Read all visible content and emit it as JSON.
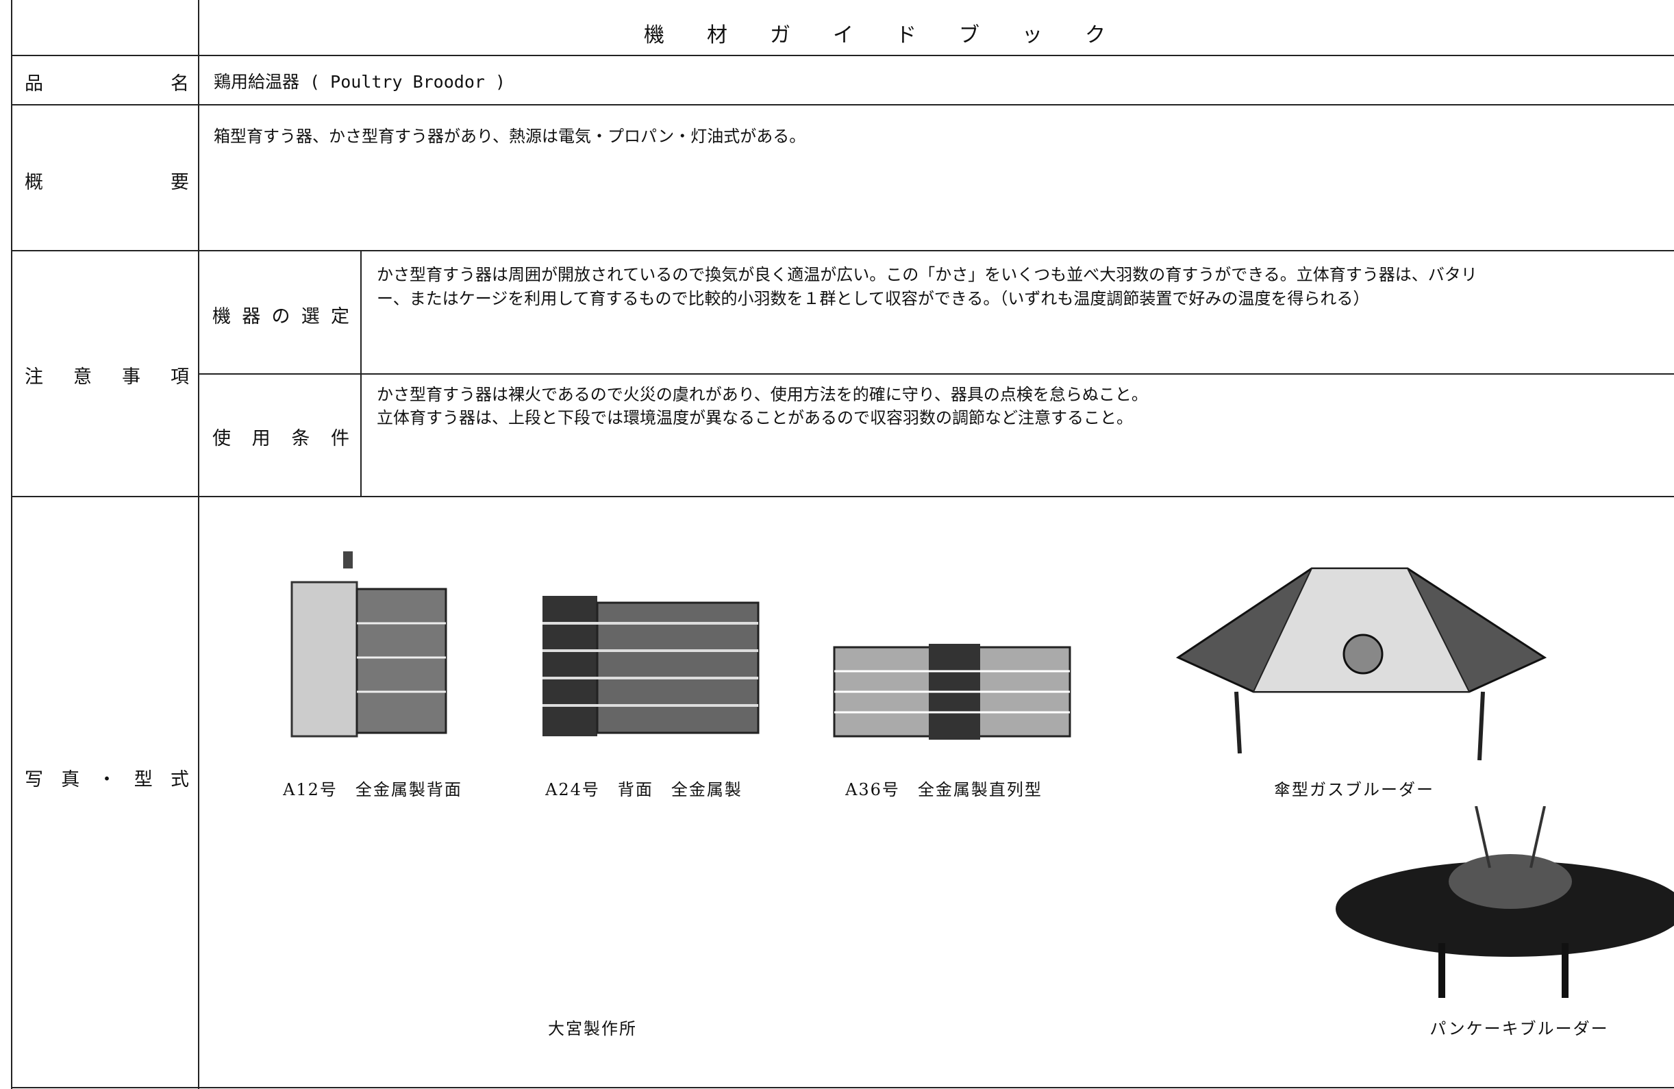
{
  "header": {
    "title": "機材ガイドブック"
  },
  "item": {
    "label": "品名",
    "value": "鶏用給温器 ( Poultry Broodor )"
  },
  "overview": {
    "label": "概要",
    "text": "箱型育すう器、かさ型育すう器があり、熱源は電気・プロパン・灯油式がある。"
  },
  "notes": {
    "label": "注意事項",
    "rows": [
      {
        "label": "機器の選定",
        "lines": [
          "かさ型育すう器は周囲が開放されているので換気が良く適温が広い。この「かさ」をいくつも並べ大羽数の育すうができる。立体育すう器は、バタリ",
          "ー、またはケージを利用して育するもので比較的小羽数を１群として収容ができる。（いずれも温度調節装置で好みの温度を得られる）"
        ]
      },
      {
        "label": "使用条件",
        "lines": [
          "かさ型育すう器は裸火であるので火災の虞れがあり、使用方法を的確に守り、器具の点検を怠らぬこと。",
          "立体育すう器は、上段と下段では環境温度が異なることがあるので収容羽数の調節など注意すること。"
        ]
      }
    ]
  },
  "photos": {
    "label": "写真・型式",
    "captions": [
      "A12号　全金属製背面",
      "A24号　背面　全金属製",
      "A36号　全金属製直列型",
      "傘型ガスブルーダー",
      "パンケーキブルーダー"
    ],
    "maker": "大宮製作所"
  }
}
